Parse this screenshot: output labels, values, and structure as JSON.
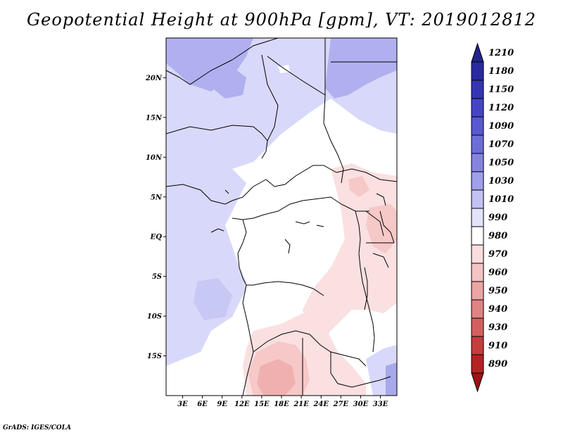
{
  "title": "Geopotential Height at 900hPa [gpm], VT: 2019012812",
  "footer": "GrADS: IGES/COLA",
  "map": {
    "lon_labels": [
      "3E",
      "6E",
      "9E",
      "12E",
      "15E",
      "18E",
      "21E",
      "24E",
      "27E",
      "30E",
      "33E"
    ],
    "lon_values": [
      3,
      6,
      9,
      12,
      15,
      18,
      21,
      24,
      27,
      30,
      33
    ],
    "lat_labels": [
      "20N",
      "15N",
      "10N",
      "5N",
      "EQ",
      "5S",
      "10S",
      "15S"
    ],
    "lat_values": [
      20,
      15,
      10,
      5,
      0,
      -5,
      -10,
      -15
    ],
    "lon_range": [
      0.5,
      35.5
    ],
    "lat_range": [
      -20,
      25
    ]
  },
  "colorbar": {
    "levels": [
      "1210",
      "1180",
      "1150",
      "1120",
      "1090",
      "1070",
      "1050",
      "1030",
      "1010",
      "990",
      "980",
      "970",
      "960",
      "950",
      "940",
      "930",
      "910",
      "890"
    ],
    "colors": [
      "#23238c",
      "#2a2aa0",
      "#3535b4",
      "#4545c4",
      "#5959cf",
      "#6e6ed8",
      "#8585e1",
      "#a0a0ea",
      "#c2c2f2",
      "#e2e2fa",
      "#ffffff",
      "#fadede",
      "#f4c3c3",
      "#eba5a5",
      "#e08383",
      "#d45f5f",
      "#c63c3c",
      "#b52323",
      "#9a1414"
    ]
  }
}
